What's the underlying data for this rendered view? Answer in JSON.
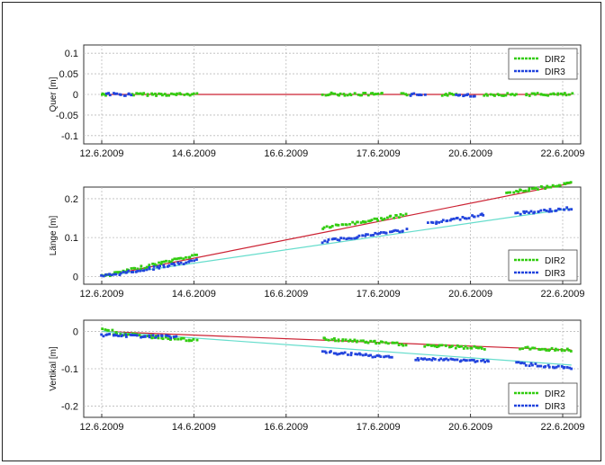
{
  "colors": {
    "dir2": "#33cc11",
    "dir3": "#2244dd",
    "trend_red": "#cc2233",
    "trend_cyan": "#66ddcc",
    "grid": "#bbbbbb"
  },
  "chart_data": [
    {
      "type": "scatter",
      "ylabel": "Quer [m]",
      "xticks": [
        "12.6.2009",
        "14.6.2009",
        "16.6.2009",
        "17.6.2009",
        "20.6.2009",
        "22.6.2009"
      ],
      "yticks": [
        "0.1",
        "0.05",
        "0",
        "-0.05",
        "-0.1"
      ],
      "ylim": [
        -0.12,
        0.12
      ],
      "grid": true,
      "legend": [
        "DIR2",
        "DIR3"
      ],
      "legend_position": "top-right",
      "series": [
        {
          "name": "DIR2",
          "segments": [
            {
              "x": [
                0.2,
                0.3
              ],
              "y": [
                0.0,
                0.0
              ]
            },
            {
              "x": [
                0.85,
                2.25
              ],
              "y": [
                0.0,
                0.0
              ]
            },
            {
              "x": [
                5.0,
                6.3
              ],
              "y": [
                0.001,
                0.0
              ]
            },
            {
              "x": [
                6.7,
                6.9
              ],
              "y": [
                0.0,
                0.0
              ]
            },
            {
              "x": [
                7.6,
                7.9
              ],
              "y": [
                0.0,
                0.0
              ]
            },
            {
              "x": [
                8.5,
                9.2
              ],
              "y": [
                0.0,
                0.0
              ]
            },
            {
              "x": [
                9.4,
                10.4
              ],
              "y": [
                0.0,
                0.0
              ]
            }
          ]
        },
        {
          "name": "DIR3",
          "segments": [
            {
              "x": [
                0.3,
                0.85
              ],
              "y": [
                0.0,
                0.0
              ]
            },
            {
              "x": [
                6.9,
                7.2
              ],
              "y": [
                0.0,
                0.0
              ]
            },
            {
              "x": [
                7.9,
                8.3
              ],
              "y": [
                -0.002,
                -0.002
              ]
            }
          ]
        }
      ],
      "trend": [
        {
          "x": [
            0.2,
            10.4
          ],
          "y": [
            0.0,
            0.0
          ],
          "color": "red"
        }
      ]
    },
    {
      "type": "scatter",
      "ylabel": "Länge [m]",
      "xticks": [
        "12.6.2009",
        "14.6.2009",
        "16.6.2009",
        "17.6.2009",
        "20.6.2009",
        "22.6.2009"
      ],
      "yticks": [
        "0.2",
        "0.1",
        "0"
      ],
      "ylim": [
        -0.02,
        0.23
      ],
      "grid": true,
      "legend": [
        "DIR2",
        "DIR3"
      ],
      "legend_position": "bottom-right",
      "series": [
        {
          "name": "DIR2",
          "segments": [
            {
              "x": [
                0.2,
                2.25
              ],
              "y": [
                0.0,
                0.055
              ]
            },
            {
              "x": [
                5.0,
                6.8
              ],
              "y": [
                0.125,
                0.158
              ]
            },
            {
              "x": [
                9.0,
                10.4
              ],
              "y": [
                0.215,
                0.24
              ]
            }
          ]
        },
        {
          "name": "DIR3",
          "segments": [
            {
              "x": [
                0.2,
                2.25
              ],
              "y": [
                0.0,
                0.04
              ]
            },
            {
              "x": [
                5.0,
                6.8
              ],
              "y": [
                0.09,
                0.12
              ]
            },
            {
              "x": [
                7.3,
                8.5
              ],
              "y": [
                0.135,
                0.16
              ]
            },
            {
              "x": [
                9.2,
                10.4
              ],
              "y": [
                0.162,
                0.175
              ]
            }
          ]
        }
      ],
      "trend": [
        {
          "x": [
            0.2,
            10.4
          ],
          "y": [
            0.0,
            0.24
          ],
          "color": "red"
        },
        {
          "x": [
            0.2,
            10.4
          ],
          "y": [
            0.0,
            0.175
          ],
          "color": "cyan"
        }
      ]
    },
    {
      "type": "scatter",
      "ylabel": "Vertikal [m]",
      "xticks": [
        "12.6.2009",
        "14.6.2009",
        "16.6.2009",
        "17.6.2009",
        "20.6.2009",
        "22.6.2009"
      ],
      "yticks": [
        "0",
        "-0.1",
        "-0.2"
      ],
      "ylim": [
        -0.23,
        0.03
      ],
      "grid": true,
      "legend": [
        "DIR2",
        "DIR3"
      ],
      "legend_position": "bottom-right",
      "series": [
        {
          "name": "DIR2",
          "segments": [
            {
              "x": [
                0.2,
                0.4
              ],
              "y": [
                0.01,
                0.0
              ]
            },
            {
              "x": [
                0.45,
                2.25
              ],
              "y": [
                -0.005,
                -0.025
              ]
            },
            {
              "x": [
                5.0,
                6.8
              ],
              "y": [
                -0.02,
                -0.035
              ]
            },
            {
              "x": [
                7.2,
                8.5
              ],
              "y": [
                -0.038,
                -0.045
              ]
            },
            {
              "x": [
                9.3,
                10.4
              ],
              "y": [
                -0.045,
                -0.05
              ]
            }
          ]
        },
        {
          "name": "DIR3",
          "segments": [
            {
              "x": [
                0.2,
                1.8
              ],
              "y": [
                -0.01,
                -0.015
              ]
            },
            {
              "x": [
                5.0,
                6.5
              ],
              "y": [
                -0.055,
                -0.07
              ]
            },
            {
              "x": [
                7.0,
                8.6
              ],
              "y": [
                -0.073,
                -0.08
              ]
            },
            {
              "x": [
                9.2,
                10.4
              ],
              "y": [
                -0.085,
                -0.1
              ]
            }
          ]
        }
      ],
      "trend": [
        {
          "x": [
            0.2,
            10.4
          ],
          "y": [
            0.0,
            -0.05
          ],
          "color": "red"
        },
        {
          "x": [
            0.2,
            10.4
          ],
          "y": [
            0.0,
            -0.09
          ],
          "color": "cyan"
        }
      ]
    }
  ]
}
